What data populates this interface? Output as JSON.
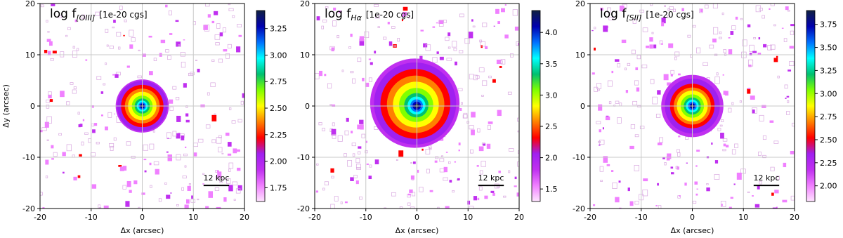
{
  "chart_data": [
    {
      "type": "emission-map",
      "title": "log f",
      "title_sub": "[OIII]",
      "title_unit": "[1e-20 cgs]",
      "xlabel": "Δx (arcsec)",
      "ylabel": "Δy (arcsec)",
      "scale_bar": "12 kpc",
      "xlim": [
        -20,
        20
      ],
      "ylim": [
        -20,
        20
      ],
      "xticks": [
        -20,
        -10,
        0,
        10,
        20
      ],
      "yticks": [
        -20,
        -10,
        0,
        10,
        20
      ],
      "grid": true,
      "clim": [
        1.62,
        3.42
      ],
      "cticks": [
        1.75,
        {
          "value": 2,
          "label": "2.00"
        },
        2.25,
        {
          "value": 2.5,
          "label": "2.50"
        },
        2.75,
        {
          "value": 3,
          "label": "3.00"
        },
        3.25
      ],
      "colormap": [
        "#ffe4ff",
        "#f080ff",
        "#c030f0",
        "#a020f0",
        "#ff0000",
        "#ff8000",
        "#ffff00",
        "#80ff00",
        "#00c070",
        "#00ffff",
        "#0070ff",
        "#0000b0",
        "#102040"
      ]
    },
    {
      "type": "emission-map",
      "title": "log f",
      "title_sub": "Hα",
      "title_unit": "[1e-20 cgs]",
      "xlabel": "Δx (arcsec)",
      "scale_bar": "12 kpc",
      "xlim": [
        -20,
        20
      ],
      "ylim": [
        -20,
        20
      ],
      "xticks": [
        -20,
        -10,
        0,
        10,
        20
      ],
      "yticks": [
        -20,
        -10,
        0,
        10,
        20
      ],
      "grid": true,
      "clim": [
        1.3,
        4.35
      ],
      "cticks": [
        1.5,
        {
          "value": 2,
          "label": "2.0"
        },
        2.5,
        {
          "value": 3,
          "label": "3.0"
        },
        3.5,
        {
          "value": 4,
          "label": "4.0"
        }
      ],
      "colormap": [
        "#ffe4ff",
        "#f080ff",
        "#c030f0",
        "#a020f0",
        "#ff0000",
        "#ff8000",
        "#ffff00",
        "#80ff00",
        "#00c070",
        "#00ffff",
        "#0070ff",
        "#0000b0",
        "#102040"
      ]
    },
    {
      "type": "emission-map",
      "title": "log f",
      "title_sub": "[SII]",
      "title_unit": "[1e-20 cgs]",
      "xlabel": "Δx (arcsec)",
      "scale_bar": "12 kpc",
      "xlim": [
        -20,
        20
      ],
      "ylim": [
        -20,
        20
      ],
      "xticks": [
        -20,
        -10,
        0,
        10,
        20
      ],
      "yticks": [
        -20,
        -10,
        0,
        10,
        20
      ],
      "grid": true,
      "clim": [
        1.83,
        3.9
      ],
      "cticks": [
        {
          "value": 2,
          "label": "2.00"
        },
        2.25,
        {
          "value": 2.5,
          "label": "2.50"
        },
        2.75,
        {
          "value": 3,
          "label": "3.00"
        },
        3.25,
        {
          "value": 3.5,
          "label": "3.50"
        },
        3.75
      ],
      "colormap": [
        "#ffe4ff",
        "#f080ff",
        "#c030f0",
        "#a020f0",
        "#ff0000",
        "#ff8000",
        "#ffff00",
        "#80ff00",
        "#00c070",
        "#00ffff",
        "#0070ff",
        "#0000b0",
        "#102040"
      ]
    }
  ]
}
